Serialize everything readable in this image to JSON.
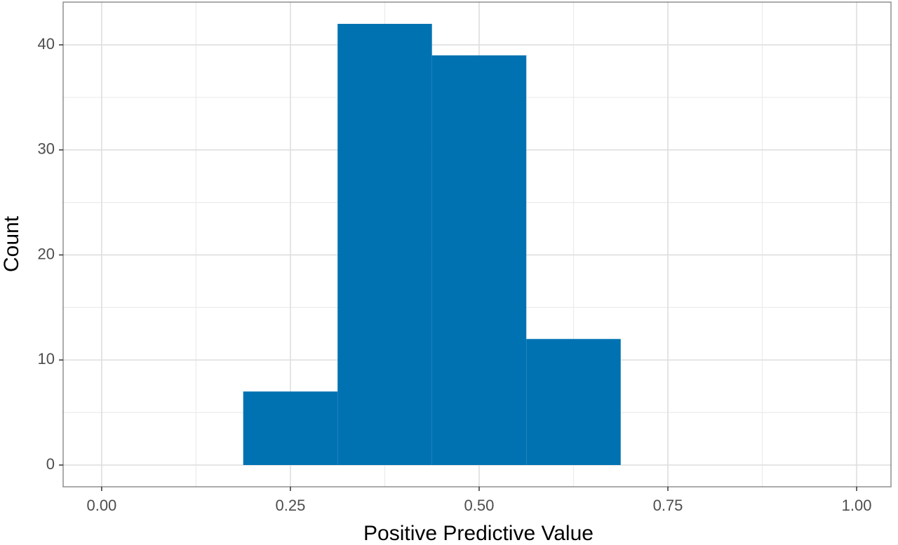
{
  "chart_data": {
    "type": "histogram",
    "x_label": "Positive Predictive Value",
    "y_label": "Count",
    "bins": [
      0.1875,
      0.3125,
      0.4375,
      0.5625,
      0.6875
    ],
    "counts": [
      7,
      42,
      39,
      12
    ],
    "color": "#0072b2",
    "xlim": [
      -0.051,
      1.0455
    ],
    "ylim": [
      -2.07,
      44.07
    ],
    "xticks": [
      {
        "value": 0,
        "label": "0.00"
      },
      {
        "value": 0.25,
        "label": "0.25"
      },
      {
        "value": 0.5,
        "label": "0.50"
      },
      {
        "value": 0.75,
        "label": "0.75"
      },
      {
        "value": 1,
        "label": "1.00"
      }
    ],
    "yticks": [
      0,
      10,
      20,
      30,
      40
    ],
    "grid": true,
    "minor_grid": true
  }
}
